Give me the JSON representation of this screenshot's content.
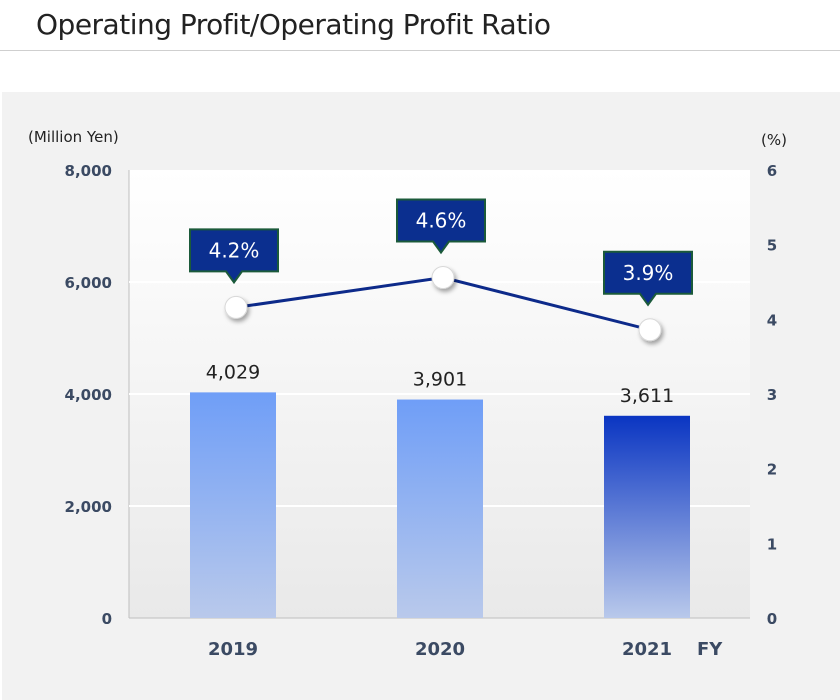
{
  "page": {
    "title": "Operating Profit/Operating Profit Ratio"
  },
  "colors": {
    "bar_light_top": "#6f9ef7",
    "bar_light_bottom": "#b9c9eb",
    "bar_dark_top": "#0a35c2",
    "bar_dark_bottom": "#b9c9eb",
    "line": "#0d2a8a",
    "callout_fill": "#0b2f8f",
    "callout_stroke": "#1b5a3a"
  },
  "chart_data": {
    "type": "bar",
    "title": "Operating Profit/Operating Profit Ratio",
    "categories": [
      "2019",
      "2020",
      "2021"
    ],
    "x_suffix": "FY",
    "series": [
      {
        "name": "Operating Profit",
        "kind": "bar",
        "axis": "left",
        "values": [
          4029,
          3901,
          3611
        ],
        "labels": [
          "4,029",
          "3,901",
          "3,611"
        ]
      },
      {
        "name": "Operating Profit Ratio",
        "kind": "line",
        "axis": "right",
        "values": [
          4.2,
          4.6,
          3.9
        ],
        "labels": [
          "4.2%",
          "4.6%",
          "3.9%"
        ]
      }
    ],
    "ylabel_left": "(Million Yen)",
    "ylabel_right": "(%)",
    "ylim_left": [
      0,
      8000
    ],
    "ylim_right": [
      0,
      6
    ],
    "yticks_left": [
      0,
      2000,
      4000,
      6000,
      8000
    ],
    "ytick_labels_left": [
      "0",
      "2,000",
      "4,000",
      "6,000",
      "8,000"
    ],
    "yticks_right": [
      0,
      1,
      2,
      3,
      4,
      5,
      6
    ],
    "ytick_labels_right": [
      "0",
      "1",
      "2",
      "3",
      "4",
      "5",
      "6"
    ],
    "highlight_category": "2021"
  }
}
